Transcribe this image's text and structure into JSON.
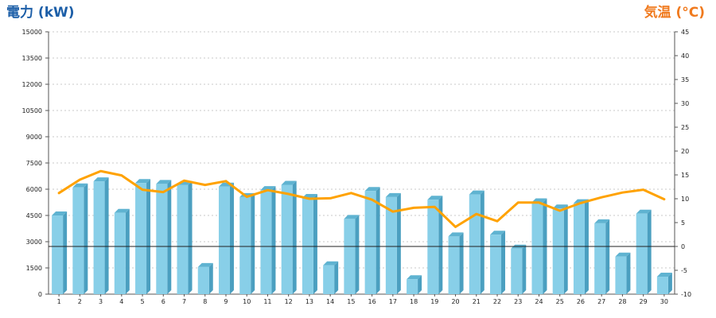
{
  "chart_data": {
    "type": "bar",
    "y_left_label": "電力 (kW)",
    "y_right_label": "気温 (°C)",
    "categories": [
      "1",
      "2",
      "3",
      "4",
      "5",
      "6",
      "7",
      "8",
      "9",
      "10",
      "11",
      "12",
      "13",
      "14",
      "15",
      "16",
      "17",
      "18",
      "19",
      "20",
      "21",
      "22",
      "23",
      "24",
      "25",
      "26",
      "27",
      "28",
      "29",
      "30"
    ],
    "y_left_ticks": [
      "0",
      "1500",
      "3000",
      "4500",
      "6000",
      "7500",
      "9000",
      "10500",
      "12000",
      "13500",
      "15000"
    ],
    "y_right_ticks": [
      "-10",
      "-5",
      "0",
      "5",
      "10",
      "15",
      "20",
      "25",
      "30",
      "35",
      "40",
      "45"
    ],
    "y_left_lim": [
      0,
      15000
    ],
    "y_right_lim": [
      -10,
      45
    ],
    "grid": true,
    "series": [
      {
        "axis": "left",
        "type": "bar",
        "values": [
          4500,
          6100,
          6450,
          4650,
          6350,
          6300,
          6250,
          1550,
          6150,
          5550,
          5950,
          6250,
          5500,
          1650,
          4300,
          5900,
          5550,
          850,
          5400,
          3300,
          5700,
          3400,
          2600,
          5250,
          4900,
          5200,
          4050,
          2150,
          4600,
          1000
        ]
      },
      {
        "axis": "right",
        "type": "line",
        "values": [
          11.2,
          14,
          15.8,
          14.9,
          11.9,
          11.4,
          13.8,
          12.9,
          13.7,
          10.4,
          11.8,
          11,
          10,
          10.1,
          11.2,
          9.8,
          7.3,
          8.1,
          8.3,
          4.1,
          6.8,
          5.3,
          9.2,
          9.2,
          7.5,
          9.1,
          10.3,
          11.3,
          11.9,
          9.9
        ]
      }
    ],
    "colors": {
      "bar": "#88cfe8",
      "bar_side": "#4b9fc0",
      "line": "#ffa200",
      "left_title": "#1d5fa8",
      "right_title": "#f07a1e"
    }
  }
}
